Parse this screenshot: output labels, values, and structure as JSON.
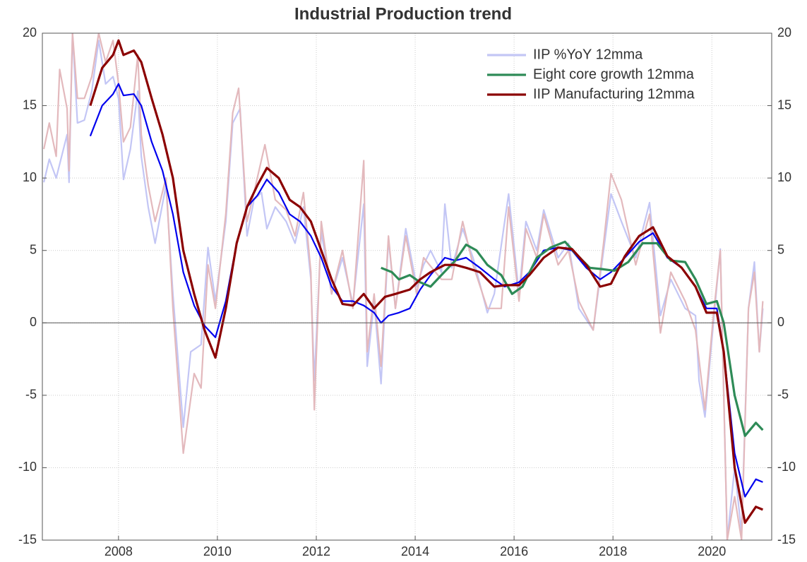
{
  "chart_data": {
    "type": "line",
    "title": "Industrial Production trend",
    "xlim": [
      2006.46,
      2021.21
    ],
    "xticks": [
      2008,
      2010,
      2012,
      2014,
      2016,
      2018,
      2020
    ],
    "ylim": [
      -15,
      20
    ],
    "yticks": [
      -15,
      -10,
      -5,
      0,
      5,
      10,
      15,
      20
    ],
    "y2lim": [
      -15,
      20
    ],
    "y2ticks": [
      -15,
      -10,
      -5,
      0,
      5,
      10,
      15,
      20
    ],
    "grid": true,
    "legend": "upper right",
    "series": [
      {
        "name": "IIP %YoY 12mma",
        "color": "#c3c6f5",
        "x": [
          2006.49,
          2006.6,
          2006.74,
          2006.96,
          2007.0,
          2007.07,
          2007.17,
          2007.31,
          2007.46,
          2007.6,
          2007.74,
          2007.89,
          2008.0,
          2008.1,
          2008.24,
          2008.39,
          2008.46,
          2008.6,
          2008.74,
          2008.96,
          2009.1,
          2009.31,
          2009.46,
          2009.67,
          2009.81,
          2009.96,
          2010.17,
          2010.31,
          2010.46,
          2010.6,
          2010.74,
          2010.89,
          2011.0,
          2011.17,
          2011.39,
          2011.57,
          2011.74,
          2011.89,
          2011.96,
          2012.1,
          2012.31,
          2012.53,
          2012.74,
          2012.96,
          2013.03,
          2013.17,
          2013.31,
          2013.46,
          2013.6,
          2013.81,
          2014.03,
          2014.17,
          2014.31,
          2014.53,
          2014.6,
          2014.74,
          2014.96,
          2015.17,
          2015.46,
          2015.6,
          2015.89,
          2016.1,
          2016.24,
          2016.46,
          2016.6,
          2016.89,
          2017.1,
          2017.31,
          2017.6,
          2017.81,
          2017.96,
          2018.17,
          2018.46,
          2018.74,
          2018.96,
          2019.17,
          2019.46,
          2019.67,
          2019.74,
          2019.86,
          2020.03,
          2020.17,
          2020.31,
          2020.46,
          2020.6,
          2020.74,
          2020.86,
          2020.96,
          2021.03
        ],
        "values": [
          9.7,
          11.3,
          10.0,
          13.0,
          9.7,
          20,
          13.8,
          14.0,
          16.0,
          19.5,
          16.5,
          17.0,
          15.5,
          9.9,
          12.0,
          16.0,
          11.5,
          8.0,
          5.5,
          9.5,
          2.0,
          -7.2,
          -2.0,
          -1.5,
          5.2,
          1.5,
          7.0,
          13.8,
          14.8,
          6.0,
          8.5,
          9.0,
          6.5,
          8.0,
          7.0,
          5.5,
          8.0,
          3.0,
          -4.0,
          6.3,
          2.0,
          4.5,
          1.3,
          8.2,
          -3.0,
          1.5,
          -4.2,
          5.8,
          1.0,
          6.5,
          2.5,
          4.0,
          5.0,
          3.5,
          8.2,
          3.8,
          6.5,
          4.5,
          0.7,
          2.0,
          8.9,
          2.0,
          7.0,
          5.0,
          7.8,
          4.5,
          5.5,
          1.0,
          -0.5,
          5.0,
          8.9,
          7.0,
          4.5,
          8.3,
          0.5,
          3.0,
          1.0,
          0.5,
          -4.0,
          -6.5,
          0.0,
          5.1,
          -15,
          -10.0,
          -14.5,
          1.0,
          4.2,
          -2.0,
          1.0
        ]
      },
      {
        "color": "#e3b9bd",
        "x": [
          2006.49,
          2006.6,
          2006.74,
          2006.81,
          2006.96,
          2007.0,
          2007.07,
          2007.17,
          2007.31,
          2007.46,
          2007.6,
          2007.74,
          2007.89,
          2008.0,
          2008.1,
          2008.24,
          2008.39,
          2008.46,
          2008.6,
          2008.74,
          2008.96,
          2009.1,
          2009.31,
          2009.53,
          2009.67,
          2009.81,
          2009.96,
          2010.17,
          2010.31,
          2010.43,
          2010.6,
          2010.74,
          2010.96,
          2011.17,
          2011.39,
          2011.57,
          2011.74,
          2011.89,
          2011.96,
          2012.1,
          2012.31,
          2012.53,
          2012.74,
          2012.96,
          2013.03,
          2013.17,
          2013.31,
          2013.46,
          2013.6,
          2013.81,
          2014.03,
          2014.17,
          2014.53,
          2014.74,
          2014.96,
          2015.17,
          2015.46,
          2015.74,
          2015.89,
          2016.1,
          2016.24,
          2016.46,
          2016.6,
          2016.89,
          2017.1,
          2017.31,
          2017.6,
          2017.81,
          2017.96,
          2018.17,
          2018.46,
          2018.74,
          2018.96,
          2019.17,
          2019.46,
          2019.67,
          2019.86,
          2020.03,
          2020.17,
          2020.31,
          2020.46,
          2020.6,
          2020.74,
          2020.86,
          2020.96,
          2021.03
        ],
        "values": [
          12.0,
          13.8,
          11.5,
          17.5,
          14.8,
          10.5,
          20.0,
          15.5,
          15.5,
          17.0,
          20.0,
          18.0,
          19.5,
          16.5,
          12.5,
          13.5,
          18.5,
          13.0,
          9.5,
          7.0,
          10.0,
          1.0,
          -9.0,
          -3.5,
          -4.5,
          4.0,
          1.0,
          7.5,
          14.5,
          16.2,
          7.0,
          9.0,
          12.3,
          8.5,
          7.8,
          6.0,
          9.0,
          3.5,
          -6.0,
          7.0,
          2.0,
          5.0,
          1.0,
          11.2,
          -2.0,
          2.0,
          -3.0,
          6.0,
          1.0,
          6.0,
          2.0,
          4.5,
          3.0,
          3.0,
          7.0,
          4.0,
          1.0,
          1.0,
          8.0,
          1.5,
          6.5,
          4.5,
          7.5,
          4.0,
          5.0,
          1.5,
          -0.5,
          5.5,
          10.3,
          8.5,
          4.0,
          7.5,
          -0.7,
          3.5,
          1.5,
          -0.5,
          -6.0,
          0.5,
          5.0,
          -15,
          -12,
          -15,
          1.0,
          3.5,
          -2.0,
          1.5
        ]
      },
      {
        "color": "#0000ee",
        "x": [
          2007.43,
          2007.67,
          2007.89,
          2008.0,
          2008.1,
          2008.31,
          2008.46,
          2008.67,
          2008.89,
          2009.1,
          2009.31,
          2009.53,
          2009.74,
          2009.96,
          2010.17,
          2010.39,
          2010.6,
          2010.81,
          2011.0,
          2011.24,
          2011.46,
          2011.67,
          2011.89,
          2012.1,
          2012.31,
          2012.53,
          2012.74,
          2012.96,
          2013.17,
          2013.31,
          2013.46,
          2013.67,
          2013.89,
          2014.1,
          2014.31,
          2014.6,
          2014.81,
          2015.03,
          2015.31,
          2015.6,
          2015.81,
          2016.1,
          2016.31,
          2016.6,
          2016.89,
          2017.17,
          2017.46,
          2017.74,
          2017.96,
          2018.24,
          2018.53,
          2018.81,
          2019.1,
          2019.39,
          2019.67,
          2019.89,
          2020.1,
          2020.24,
          2020.46,
          2020.67,
          2020.89,
          2021.03
        ],
        "values": [
          12.9,
          15.0,
          15.8,
          16.5,
          15.7,
          15.8,
          15.0,
          12.5,
          10.5,
          7.5,
          3.5,
          1.2,
          -0.2,
          -1.0,
          1.5,
          5.5,
          8.0,
          8.8,
          9.9,
          9.0,
          7.5,
          7.0,
          6.0,
          4.5,
          2.5,
          1.5,
          1.5,
          1.2,
          0.7,
          0.0,
          0.5,
          0.7,
          1.0,
          2.3,
          3.3,
          4.5,
          4.3,
          4.5,
          3.8,
          3.0,
          2.5,
          2.8,
          3.5,
          5.0,
          5.2,
          5.0,
          3.8,
          3.0,
          3.5,
          4.5,
          5.6,
          6.2,
          4.5,
          3.8,
          2.5,
          1.0,
          1.0,
          -2.0,
          -9.0,
          -12.0,
          -10.8,
          -11.0
        ]
      },
      {
        "name": "Eight core growth 12mma",
        "color": "#2e8b57",
        "x": [
          2013.31,
          2013.53,
          2013.67,
          2013.89,
          2014.1,
          2014.31,
          2014.53,
          2014.81,
          2015.03,
          2015.24,
          2015.46,
          2015.74,
          2015.96,
          2016.17,
          2016.46,
          2016.74,
          2017.03,
          2017.24,
          2017.53,
          2017.81,
          2018.03,
          2018.31,
          2018.6,
          2018.89,
          2019.17,
          2019.46,
          2019.67,
          2019.89,
          2020.1,
          2020.24,
          2020.46,
          2020.67,
          2020.89,
          2021.03
        ],
        "values": [
          3.8,
          3.5,
          3.0,
          3.3,
          2.8,
          2.5,
          3.3,
          4.3,
          5.4,
          5.0,
          4.0,
          3.3,
          2.0,
          2.5,
          4.5,
          5.2,
          5.6,
          4.8,
          3.8,
          3.7,
          3.6,
          4.2,
          5.5,
          5.5,
          4.3,
          4.2,
          3.0,
          1.3,
          1.5,
          0.0,
          -5.0,
          -7.8,
          -6.9,
          -7.4
        ]
      },
      {
        "name": "IIP Manufacturing 12mma",
        "color": "#8b0000",
        "x": [
          2007.43,
          2007.67,
          2007.89,
          2008.0,
          2008.1,
          2008.31,
          2008.46,
          2008.67,
          2008.89,
          2009.1,
          2009.31,
          2009.53,
          2009.74,
          2009.96,
          2010.17,
          2010.39,
          2010.6,
          2010.81,
          2011.0,
          2011.24,
          2011.46,
          2011.67,
          2011.89,
          2012.1,
          2012.31,
          2012.53,
          2012.74,
          2012.96,
          2013.17,
          2013.39,
          2013.6,
          2013.89,
          2014.1,
          2014.31,
          2014.6,
          2014.81,
          2015.03,
          2015.31,
          2015.6,
          2015.81,
          2016.1,
          2016.31,
          2016.6,
          2016.89,
          2017.17,
          2017.46,
          2017.74,
          2017.96,
          2018.24,
          2018.53,
          2018.81,
          2019.1,
          2019.39,
          2019.67,
          2019.89,
          2020.1,
          2020.24,
          2020.46,
          2020.67,
          2020.89,
          2021.03
        ],
        "values": [
          15.0,
          17.6,
          18.5,
          19.5,
          18.5,
          18.8,
          18.0,
          15.5,
          13.0,
          10.0,
          5.0,
          2.0,
          -0.5,
          -2.4,
          1.0,
          5.5,
          8.0,
          9.5,
          10.7,
          10.0,
          8.5,
          8.0,
          7.0,
          5.0,
          3.0,
          1.3,
          1.2,
          2.0,
          1.0,
          1.8,
          2.0,
          2.3,
          3.0,
          3.5,
          4.0,
          4.0,
          3.8,
          3.5,
          2.5,
          2.6,
          2.6,
          3.3,
          4.5,
          5.2,
          5.1,
          4.0,
          2.5,
          2.7,
          4.6,
          6.0,
          6.6,
          4.6,
          3.8,
          2.5,
          0.7,
          0.7,
          -2.0,
          -10.0,
          -13.8,
          -12.7,
          -12.9
        ]
      }
    ]
  }
}
